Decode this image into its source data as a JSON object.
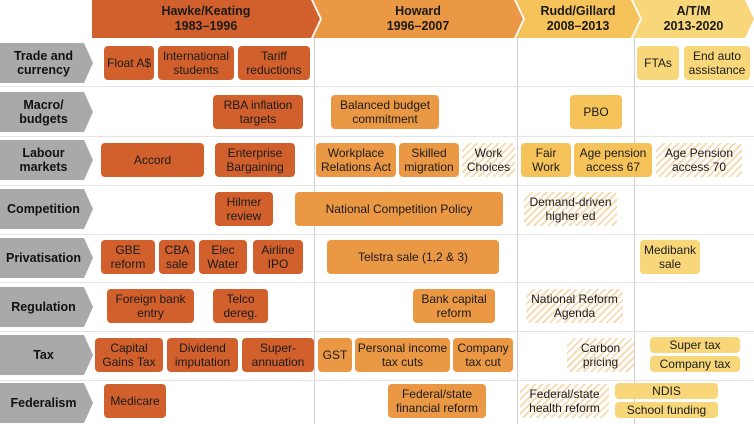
{
  "eras": [
    {
      "name": "Hawke/Keating",
      "years": "1983–1996",
      "color": "#d2602c"
    },
    {
      "name": "Howard",
      "years": "1996–2007",
      "color": "#eb9845"
    },
    {
      "name": "Rudd/Gillard",
      "years": "2008–2013",
      "color": "#f6c25a"
    },
    {
      "name": "A/T/M",
      "years": "2013-2020",
      "color": "#f8d77b"
    }
  ],
  "rows": [
    "Trade and currency",
    "Macro/ budgets",
    "Labour markets",
    "Competition",
    "Privatisation",
    "Regulation",
    "Tax",
    "Federalism"
  ],
  "policies": {
    "trade": [
      "Float A$",
      "International students",
      "Tariff reductions",
      "FTAs",
      "End auto assistance"
    ],
    "macro": [
      "RBA inflation targets",
      "Balanced budget commitment",
      "PBO"
    ],
    "labour": [
      "Accord",
      "Enterprise Bargaining",
      "Workplace Relations Act",
      "Skilled migration",
      "Work Choices",
      "Fair Work",
      "Age pension access 67",
      "Age Pension access 70"
    ],
    "competition": [
      "Hilmer review",
      "National Competition Policy",
      "Demand-driven higher ed"
    ],
    "privatisation": [
      "GBE reform",
      "CBA sale",
      "Elec Water",
      "Airline IPO",
      "Telstra sale (1,2 & 3)",
      "Medibank sale"
    ],
    "regulation": [
      "Foreign bank entry",
      "Telco dereg.",
      "Bank capital reform",
      "National Reform Agenda"
    ],
    "tax": [
      "Capital Gains Tax",
      "Dividend imputation",
      "Super-annuation",
      "GST",
      "Personal income tax cuts",
      "Company tax cut",
      "Carbon pricing",
      "Super tax",
      "Company tax"
    ],
    "federalism": [
      "Medicare",
      "Federal/state financial reform",
      "Federal/state health reform",
      "NDIS",
      "School funding"
    ]
  }
}
